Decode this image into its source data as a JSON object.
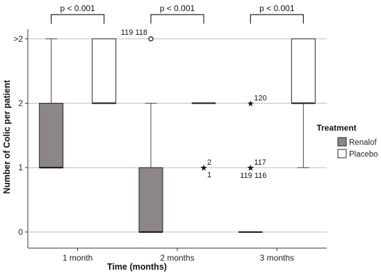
{
  "chart_data": {
    "type": "boxplot",
    "xlabel": "Time (months)",
    "ylabel": "Number of Colic per patient",
    "categories": [
      "1 month",
      "2 months",
      "3 months"
    ],
    "y_levels": [
      {
        "value": 0,
        "label": "0"
      },
      {
        "value": 1,
        "label": "1"
      },
      {
        "value": 2,
        "label": "2"
      },
      {
        "value": 3,
        "label": ">2"
      }
    ],
    "ylim": [
      -0.25,
      3.15
    ],
    "grid": "horizontal",
    "legend": {
      "title": "Treatment",
      "placement": "right",
      "items": [
        {
          "name": "Renalof",
          "color": "#8c8687"
        },
        {
          "name": "Placebo",
          "color": "#ffffff"
        }
      ]
    },
    "series": [
      {
        "name": "Renalof",
        "color": "#8c8687",
        "boxes": [
          {
            "category": "1 month",
            "min": 1,
            "q1": 1,
            "median": 1,
            "q3": 2,
            "max": 3
          },
          {
            "category": "2 months",
            "min": 0,
            "q1": 0,
            "median": 0,
            "q3": 1,
            "max": 2
          },
          {
            "category": "3 months",
            "min": 0,
            "q1": 0,
            "median": 0,
            "q3": 0,
            "max": 0
          }
        ]
      },
      {
        "name": "Placebo",
        "color": "#ffffff",
        "boxes": [
          {
            "category": "1 month",
            "min": 2,
            "q1": 2,
            "median": 2,
            "q3": 3,
            "max": 3
          },
          {
            "category": "2 months",
            "min": 2,
            "q1": 2,
            "median": 2,
            "q3": 2,
            "max": 2
          },
          {
            "category": "3 months",
            "min": 1,
            "q1": 2,
            "median": 2,
            "q3": 3,
            "max": 3
          }
        ]
      }
    ],
    "outliers": [
      {
        "series": "Renalof",
        "category": "2 months",
        "value": 3,
        "marker": "circle",
        "label": "119 118",
        "label_pos": "left-above"
      },
      {
        "series": "Renalof",
        "category": "3 months",
        "value": 2,
        "marker": "star",
        "label": "120",
        "label_pos": "right-above"
      },
      {
        "series": "Renalof",
        "category": "3 months",
        "value": 1,
        "marker": "star",
        "label": "117",
        "label_pos": "right-above"
      },
      {
        "series": "Renalof",
        "category": "3 months",
        "value": 1,
        "marker": "star",
        "label": "119 116",
        "label_pos": "below"
      },
      {
        "series": "Placebo",
        "category": "2 months",
        "value": 1,
        "marker": "star",
        "label": "2",
        "label_pos": "right-above"
      },
      {
        "series": "Placebo",
        "category": "2 months",
        "value": 1,
        "marker": "star",
        "label": "1",
        "label_pos": "right-below"
      }
    ],
    "comparisons": [
      {
        "category": "1 month",
        "label": "p < 0.001"
      },
      {
        "category": "2 months",
        "label": "p < 0.001"
      },
      {
        "category": "3 months",
        "label": "p < 0.001"
      }
    ]
  }
}
